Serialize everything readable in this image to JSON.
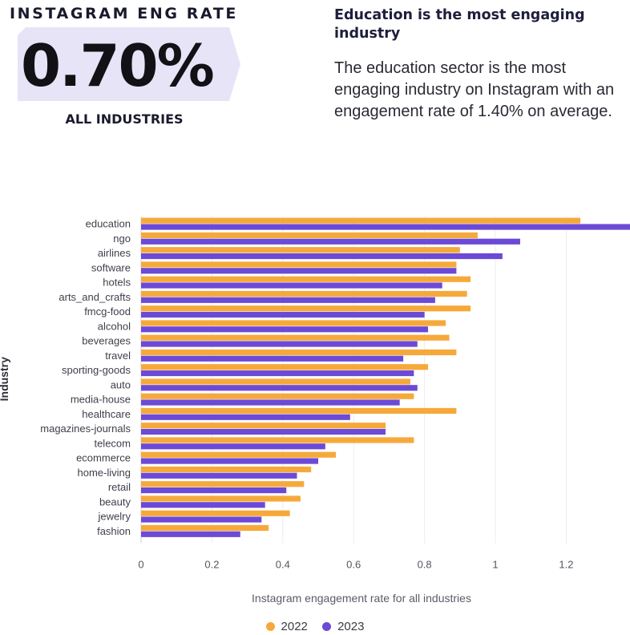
{
  "header": {
    "metric_title": "INSTAGRAM ENG RATE",
    "metric_value": "0.70%",
    "metric_scope": "ALL INDUSTRIES",
    "headline": "Education is the most engaging industry",
    "description": "The education sector is the most engaging industry on Instagram with an engagement rate of 1.40% on average."
  },
  "colors": {
    "series_2022": "#f6a93b",
    "series_2023": "#6c4ad6",
    "banner": "#e6e4f6",
    "grid": "#ececf2"
  },
  "chart_data": {
    "type": "bar",
    "orientation": "horizontal",
    "categories": [
      "education",
      "ngo",
      "airlines",
      "software",
      "hotels",
      "arts_and_crafts",
      "fmcg-food",
      "alcohol",
      "beverages",
      "travel",
      "sporting-goods",
      "auto",
      "media-house",
      "healthcare",
      "magazines-journals",
      "telecom",
      "ecommerce",
      "home-living",
      "retail",
      "beauty",
      "jewelry",
      "fashion"
    ],
    "series": [
      {
        "name": "2022",
        "color": "#f6a93b",
        "values": [
          1.24,
          0.95,
          0.9,
          0.89,
          0.93,
          0.92,
          0.93,
          0.86,
          0.87,
          0.89,
          0.81,
          0.76,
          0.77,
          0.89,
          0.69,
          0.77,
          0.55,
          0.48,
          0.46,
          0.45,
          0.42,
          0.36
        ]
      },
      {
        "name": "2023",
        "color": "#6c4ad6",
        "values": [
          1.4,
          1.07,
          1.02,
          0.89,
          0.85,
          0.83,
          0.8,
          0.81,
          0.78,
          0.74,
          0.77,
          0.78,
          0.73,
          0.59,
          0.69,
          0.52,
          0.5,
          0.44,
          0.41,
          0.35,
          0.34,
          0.28
        ]
      }
    ],
    "xlabel": "Instagram engagement rate for all industries",
    "ylabel": "Industry",
    "xlim": [
      0,
      1.38
    ],
    "xticks": [
      0,
      0.2,
      0.4,
      0.6,
      0.8,
      1,
      1.2
    ],
    "xtick_labels": [
      "0",
      "0.2",
      "0.4",
      "0.6",
      "0.8",
      "1",
      "1.2"
    ],
    "grid": true,
    "legend_position": "bottom-center"
  }
}
